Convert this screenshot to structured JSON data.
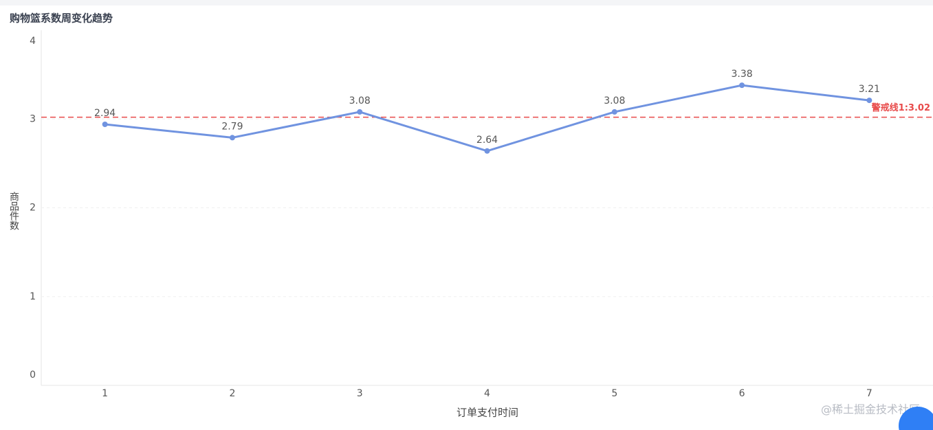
{
  "chart_data": {
    "type": "line",
    "title": "购物篮系数周变化趋势",
    "x_label": "订单支付时间",
    "y_label": "商品件数",
    "categories": [
      "1",
      "2",
      "3",
      "4",
      "5",
      "6",
      "7"
    ],
    "values": [
      2.94,
      2.79,
      3.08,
      2.64,
      3.08,
      3.38,
      3.21
    ],
    "color": "#7093e0",
    "ylim": [
      0,
      4
    ],
    "yticks": [
      0,
      1,
      2,
      3,
      4
    ],
    "grid": true,
    "mark_line": {
      "value": 3.02,
      "label": "警戒线1:3.02",
      "color": "#e84a4a"
    },
    "watermark": "@稀土掘金技术社区"
  }
}
